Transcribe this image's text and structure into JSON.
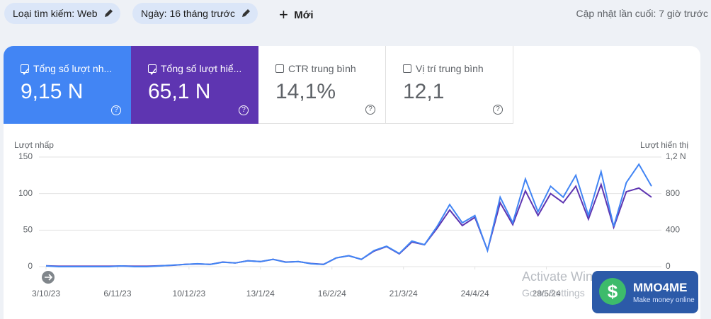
{
  "toolbar": {
    "filters": [
      "Loại tìm kiếm: Web",
      "Ngày: 16 tháng trước"
    ],
    "new_button": "Mới",
    "last_updated": "Cập nhật lần cuối: 7 giờ trước"
  },
  "metrics": [
    {
      "label": "Tổng số lượt nh...",
      "value": "9,15 N"
    },
    {
      "label": "Tổng số lượt hiể...",
      "value": "65,1 N"
    },
    {
      "label": "CTR trung bình",
      "value": "14,1%"
    },
    {
      "label": "Vị trí trung bình",
      "value": "12,1"
    }
  ],
  "watermark": {
    "title": "Activate Windows",
    "subtitle": "Go to Settings"
  },
  "badge": {
    "name": "MMO4ME",
    "tagline": "Make money online"
  },
  "chart_data": {
    "type": "line",
    "y_label": "Lượt nhấp",
    "y2_label": "Lượt hiển thị",
    "x": [
      "3/10/23",
      "9/10/23",
      "15/10/23",
      "21/10/23",
      "27/10/23",
      "2/11/23",
      "8/11/23",
      "14/11/23",
      "20/11/23",
      "26/11/23",
      "2/12/23",
      "8/12/23",
      "14/12/23",
      "20/12/23",
      "26/12/23",
      "1/1/24",
      "7/1/24",
      "13/1/24",
      "19/1/24",
      "25/1/24",
      "31/1/24",
      "6/2/24",
      "12/2/24",
      "18/2/24",
      "24/2/24",
      "1/3/24",
      "7/3/24",
      "13/3/24",
      "19/3/24",
      "25/3/24",
      "31/3/24",
      "6/4/24",
      "12/4/24",
      "18/4/24",
      "24/4/24",
      "30/4/24",
      "6/5/24",
      "12/5/24",
      "18/5/24",
      "24/5/24",
      "30/5/24",
      "5/6/24",
      "11/6/24",
      "17/6/24",
      "23/6/24",
      "29/6/24",
      "5/7/24",
      "11/7/24",
      "17/7/24"
    ],
    "xlim": [
      "3/10/23",
      "17/7/24"
    ],
    "xticks": [
      "3/10/23",
      "6/11/23",
      "10/12/23",
      "13/1/24",
      "16/2/24",
      "21/3/24",
      "24/4/24",
      "28/5/24"
    ],
    "ylim": [
      0,
      150
    ],
    "yticks": [
      0,
      50,
      100,
      150
    ],
    "y2lim": [
      0,
      1200
    ],
    "y2ticks": [
      0,
      400,
      800,
      {
        "value": 1200,
        "label": "1,2 N"
      }
    ],
    "grid": true,
    "series": [
      {
        "name": "Lượt nhấp",
        "color": "#4285f4",
        "values": [
          1,
          0,
          0,
          0,
          0,
          0,
          1,
          0,
          0,
          1,
          2,
          3,
          4,
          3,
          6,
          5,
          8,
          7,
          10,
          6,
          7,
          4,
          3,
          12,
          15,
          10,
          22,
          28,
          18,
          35,
          30,
          55,
          85,
          60,
          70,
          22,
          95,
          60,
          120,
          75,
          110,
          95,
          125,
          70,
          130,
          55,
          115,
          140,
          110
        ]
      },
      {
        "name": "Lượt hiển thị",
        "color": "#5e35b1",
        "axis": "y2",
        "values": [
          10,
          5,
          5,
          5,
          5,
          5,
          8,
          5,
          5,
          10,
          15,
          25,
          30,
          25,
          50,
          40,
          65,
          55,
          80,
          50,
          55,
          35,
          25,
          95,
          120,
          80,
          170,
          220,
          140,
          270,
          240,
          420,
          620,
          450,
          540,
          180,
          700,
          460,
          830,
          560,
          800,
          700,
          880,
          520,
          900,
          430,
          820,
          860,
          760
        ]
      }
    ]
  }
}
